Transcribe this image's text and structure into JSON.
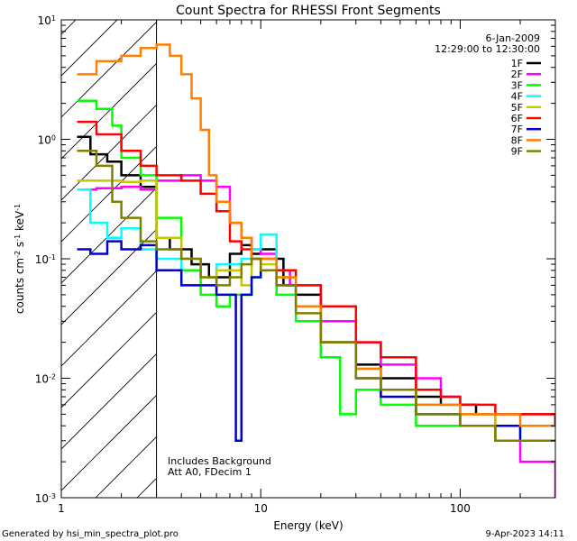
{
  "chart_data": {
    "type": "line",
    "title": "Count Spectra for RHESSI Front Segments",
    "xlabel": "Energy (keV)",
    "ylabel_parts": {
      "base": "counts cm",
      "exp1": "-2",
      "mid": " s",
      "exp2": "-1",
      "mid2": " keV",
      "exp3": "-1"
    },
    "xscale": "log",
    "yscale": "log",
    "xlim": [
      1,
      300
    ],
    "ylim": [
      0.001,
      10
    ],
    "x_ticks": [
      {
        "value": 1,
        "label": "1"
      },
      {
        "value": 10,
        "label": "10"
      },
      {
        "value": 100,
        "label": "100"
      }
    ],
    "y_ticks": [
      {
        "value": 10,
        "base": "10",
        "exp": "1"
      },
      {
        "value": 1,
        "base": "10",
        "exp": "0"
      },
      {
        "value": 0.1,
        "base": "10",
        "exp": "-1"
      },
      {
        "value": 0.01,
        "base": "10",
        "exp": "-2"
      },
      {
        "value": 0.001,
        "base": "10",
        "exp": "-3"
      }
    ],
    "shaded_region": {
      "x_from": 1,
      "x_to": 3,
      "style": "diagonal-hatch"
    },
    "date": "6-Jan-2009",
    "time_range": "12:29:00 to 12:30:00",
    "annotations": [
      "Includes Background",
      "Att A0, FDecim 1"
    ],
    "series": [
      {
        "name": "1F",
        "color": "#000000",
        "points": [
          [
            1.2,
            1.05
          ],
          [
            1.4,
            0.75
          ],
          [
            1.7,
            0.65
          ],
          [
            2.0,
            0.5
          ],
          [
            2.5,
            0.4
          ],
          [
            3.0,
            0.15
          ],
          [
            3.5,
            0.12
          ],
          [
            4.5,
            0.09
          ],
          [
            5.5,
            0.07
          ],
          [
            7,
            0.11
          ],
          [
            8,
            0.13
          ],
          [
            9,
            0.11
          ],
          [
            10,
            0.12
          ],
          [
            12,
            0.1
          ],
          [
            13,
            0.06
          ],
          [
            15,
            0.05
          ],
          [
            20,
            0.02
          ],
          [
            30,
            0.013
          ],
          [
            40,
            0.01
          ],
          [
            60,
            0.007
          ],
          [
            80,
            0.006
          ],
          [
            120,
            0.005
          ],
          [
            200,
            0.005
          ],
          [
            300,
            0.004
          ]
        ]
      },
      {
        "name": "2F",
        "color": "#ff00ff",
        "points": [
          [
            1.2,
            0.38
          ],
          [
            1.5,
            0.39
          ],
          [
            2.0,
            0.4
          ],
          [
            2.5,
            0.38
          ],
          [
            3.0,
            0.45
          ],
          [
            4,
            0.5
          ],
          [
            5,
            0.45
          ],
          [
            6,
            0.4
          ],
          [
            7,
            0.2
          ],
          [
            8,
            0.15
          ],
          [
            9,
            0.12
          ],
          [
            10,
            0.11
          ],
          [
            12,
            0.08
          ],
          [
            14,
            0.06
          ],
          [
            20,
            0.03
          ],
          [
            30,
            0.02
          ],
          [
            40,
            0.013
          ],
          [
            60,
            0.01
          ],
          [
            80,
            0.007
          ],
          [
            100,
            0.005
          ],
          [
            150,
            0.003
          ],
          [
            200,
            0.002
          ],
          [
            300,
            0.001
          ]
        ]
      },
      {
        "name": "3F",
        "color": "#00ff00",
        "points": [
          [
            1.2,
            2.1
          ],
          [
            1.5,
            1.8
          ],
          [
            1.8,
            1.3
          ],
          [
            2.0,
            0.7
          ],
          [
            2.5,
            0.5
          ],
          [
            3.0,
            0.22
          ],
          [
            4,
            0.08
          ],
          [
            5,
            0.05
          ],
          [
            6,
            0.04
          ],
          [
            7,
            0.05
          ],
          [
            8,
            0.05
          ],
          [
            9,
            0.07
          ],
          [
            10,
            0.08
          ],
          [
            12,
            0.05
          ],
          [
            15,
            0.03
          ],
          [
            20,
            0.015
          ],
          [
            25,
            0.005
          ],
          [
            30,
            0.008
          ],
          [
            40,
            0.006
          ],
          [
            60,
            0.004
          ],
          [
            100,
            0.004
          ],
          [
            150,
            0.003
          ],
          [
            200,
            0.003
          ],
          [
            300,
            0.003
          ]
        ]
      },
      {
        "name": "4F",
        "color": "#00ffff",
        "points": [
          [
            1.2,
            0.38
          ],
          [
            1.4,
            0.2
          ],
          [
            1.7,
            0.15
          ],
          [
            2.0,
            0.18
          ],
          [
            2.5,
            0.12
          ],
          [
            3.0,
            0.1
          ],
          [
            4,
            0.06
          ],
          [
            5,
            0.06
          ],
          [
            6,
            0.09
          ],
          [
            7,
            0.09
          ],
          [
            8,
            0.1
          ],
          [
            9,
            0.12
          ],
          [
            10,
            0.16
          ],
          [
            12,
            0.08
          ],
          [
            15,
            0.04
          ],
          [
            20,
            0.02
          ],
          [
            30,
            0.012
          ],
          [
            40,
            0.008
          ],
          [
            60,
            0.005
          ],
          [
            100,
            0.004
          ],
          [
            150,
            0.004
          ],
          [
            200,
            0.003
          ],
          [
            300,
            0.003
          ]
        ]
      },
      {
        "name": "5F",
        "color": "#c8c800",
        "points": [
          [
            1.2,
            0.45
          ],
          [
            1.5,
            0.45
          ],
          [
            2.0,
            0.44
          ],
          [
            2.5,
            0.45
          ],
          [
            3.0,
            0.15
          ],
          [
            4,
            0.1
          ],
          [
            5,
            0.07
          ],
          [
            6,
            0.08
          ],
          [
            7,
            0.08
          ],
          [
            8,
            0.06
          ],
          [
            9,
            0.1
          ],
          [
            10,
            0.09
          ],
          [
            12,
            0.07
          ],
          [
            15,
            0.04
          ],
          [
            20,
            0.02
          ],
          [
            30,
            0.012
          ],
          [
            40,
            0.008
          ],
          [
            60,
            0.006
          ],
          [
            100,
            0.005
          ],
          [
            150,
            0.004
          ],
          [
            200,
            0.004
          ],
          [
            300,
            0.004
          ]
        ]
      },
      {
        "name": "6F",
        "color": "#ff0000",
        "points": [
          [
            1.2,
            1.4
          ],
          [
            1.5,
            1.1
          ],
          [
            2.0,
            0.8
          ],
          [
            2.5,
            0.6
          ],
          [
            3.0,
            0.5
          ],
          [
            4,
            0.45
          ],
          [
            5,
            0.35
          ],
          [
            6,
            0.25
          ],
          [
            7,
            0.14
          ],
          [
            8,
            0.12
          ],
          [
            9,
            0.1
          ],
          [
            10,
            0.1
          ],
          [
            12,
            0.08
          ],
          [
            15,
            0.06
          ],
          [
            20,
            0.04
          ],
          [
            30,
            0.02
          ],
          [
            40,
            0.015
          ],
          [
            60,
            0.008
          ],
          [
            80,
            0.007
          ],
          [
            100,
            0.006
          ],
          [
            150,
            0.005
          ],
          [
            200,
            0.005
          ],
          [
            300,
            0.004
          ]
        ]
      },
      {
        "name": "7F",
        "color": "#0000cc",
        "points": [
          [
            1.2,
            0.12
          ],
          [
            1.4,
            0.11
          ],
          [
            1.7,
            0.14
          ],
          [
            2.0,
            0.12
          ],
          [
            2.5,
            0.13
          ],
          [
            3.0,
            0.08
          ],
          [
            4,
            0.06
          ],
          [
            5,
            0.06
          ],
          [
            6,
            0.05
          ],
          [
            7,
            0.05
          ],
          [
            7.5,
            0.003
          ],
          [
            8,
            0.05
          ],
          [
            9,
            0.07
          ],
          [
            10,
            0.08
          ],
          [
            12,
            0.06
          ],
          [
            15,
            0.04
          ],
          [
            20,
            0.02
          ],
          [
            30,
            0.01
          ],
          [
            40,
            0.007
          ],
          [
            60,
            0.005
          ],
          [
            100,
            0.004
          ],
          [
            150,
            0.004
          ],
          [
            200,
            0.003
          ],
          [
            300,
            0.003
          ]
        ]
      },
      {
        "name": "8F",
        "color": "#ff8000",
        "points": [
          [
            1.2,
            3.5
          ],
          [
            1.5,
            4.5
          ],
          [
            2.0,
            5.0
          ],
          [
            2.5,
            5.8
          ],
          [
            3.0,
            6.2
          ],
          [
            3.5,
            5.0
          ],
          [
            4,
            3.5
          ],
          [
            4.5,
            2.2
          ],
          [
            5,
            1.2
          ],
          [
            5.5,
            0.5
          ],
          [
            6,
            0.3
          ],
          [
            7,
            0.2
          ],
          [
            8,
            0.15
          ],
          [
            9,
            0.1
          ],
          [
            10,
            0.1
          ],
          [
            12,
            0.07
          ],
          [
            15,
            0.04
          ],
          [
            20,
            0.02
          ],
          [
            30,
            0.012
          ],
          [
            40,
            0.008
          ],
          [
            60,
            0.006
          ],
          [
            100,
            0.005
          ],
          [
            150,
            0.005
          ],
          [
            200,
            0.004
          ],
          [
            300,
            0.004
          ]
        ]
      },
      {
        "name": "9F",
        "color": "#808000",
        "points": [
          [
            1.2,
            0.8
          ],
          [
            1.5,
            0.6
          ],
          [
            1.8,
            0.3
          ],
          [
            2.0,
            0.22
          ],
          [
            2.5,
            0.14
          ],
          [
            3.0,
            0.12
          ],
          [
            4,
            0.1
          ],
          [
            5,
            0.07
          ],
          [
            6,
            0.06
          ],
          [
            7,
            0.07
          ],
          [
            8,
            0.09
          ],
          [
            9,
            0.1
          ],
          [
            10,
            0.08
          ],
          [
            12,
            0.06
          ],
          [
            15,
            0.035
          ],
          [
            20,
            0.02
          ],
          [
            30,
            0.01
          ],
          [
            40,
            0.008
          ],
          [
            60,
            0.005
          ],
          [
            100,
            0.004
          ],
          [
            150,
            0.003
          ],
          [
            200,
            0.003
          ],
          [
            300,
            0.003
          ]
        ]
      }
    ]
  },
  "footer": {
    "generated_by": "Generated by hsi_min_spectra_plot.pro",
    "timestamp": "9-Apr-2023 14:11"
  }
}
